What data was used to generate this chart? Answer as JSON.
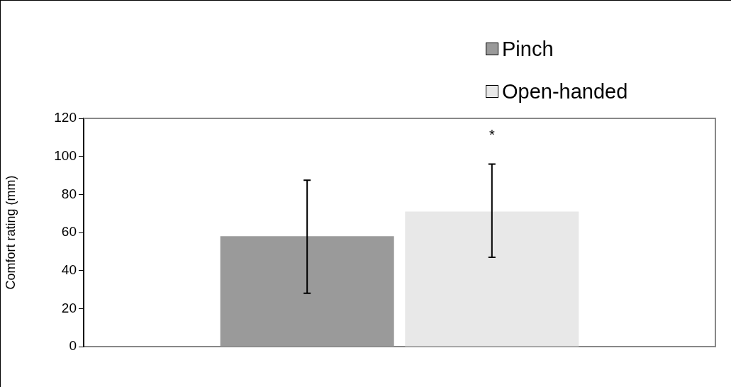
{
  "chart_data": {
    "type": "bar",
    "ylabel": "Comfort rating (mm)",
    "categories": [
      null
    ],
    "series": [
      {
        "name": "Pinch",
        "color": "#9a9a9a",
        "values": [
          58
        ],
        "errors": [
          [
            28,
            87.5
          ]
        ]
      },
      {
        "name": "Open-handed",
        "color": "#e8e8e8",
        "values": [
          71
        ],
        "errors": [
          [
            47,
            96
          ]
        ]
      }
    ],
    "ylim": [
      0,
      120
    ],
    "yticks": [
      0,
      20,
      40,
      60,
      80,
      100,
      120
    ],
    "annotations": [
      "*"
    ],
    "grid": false,
    "legend": "top right"
  }
}
